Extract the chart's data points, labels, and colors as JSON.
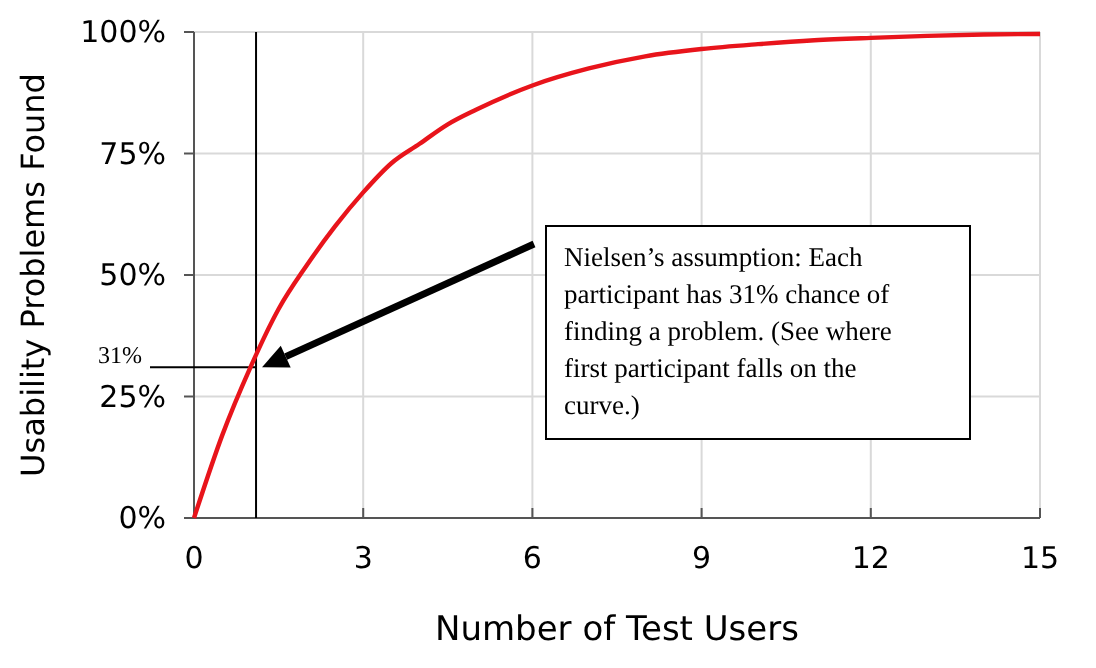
{
  "chart_data": {
    "type": "line",
    "xlabel": "Number of Test Users",
    "ylabel": "Usability Problems Found",
    "x": [
      0,
      0.5,
      1,
      1.5,
      2,
      2.5,
      3,
      3.5,
      4,
      4.5,
      5,
      6,
      7,
      8,
      9,
      10,
      11,
      12,
      13,
      14,
      15
    ],
    "series": [
      {
        "color": "#e8141b",
        "values": [
          0,
          17,
          31,
          43,
          52,
          60,
          67,
          73,
          77,
          81,
          84,
          89,
          92.5,
          95,
          96.5,
          97.5,
          98.3,
          98.8,
          99.2,
          99.5,
          99.6
        ]
      }
    ],
    "xlim": [
      0,
      15
    ],
    "xticks": [
      0,
      3,
      6,
      9,
      12,
      15
    ],
    "ylim": [
      0,
      100
    ],
    "yticks": [
      {
        "value": 0,
        "label": "0%"
      },
      {
        "value": 25,
        "label": "25%"
      },
      {
        "value": 50,
        "label": "50%"
      },
      {
        "value": 75,
        "label": "75%"
      },
      {
        "value": 100,
        "label": "100%"
      }
    ],
    "grid": true,
    "marker": "none",
    "line_style": "solid",
    "ref_lines": [
      {
        "axis": "x",
        "value": 1.1,
        "color": "#000000"
      },
      {
        "axis": "y",
        "value": 31,
        "label": "31%",
        "color": "#000000"
      }
    ],
    "annotations": [
      "Nielsen’s assumption: Each participant has 31% chance of finding a problem. (See where first participant falls on the curve.)"
    ]
  }
}
